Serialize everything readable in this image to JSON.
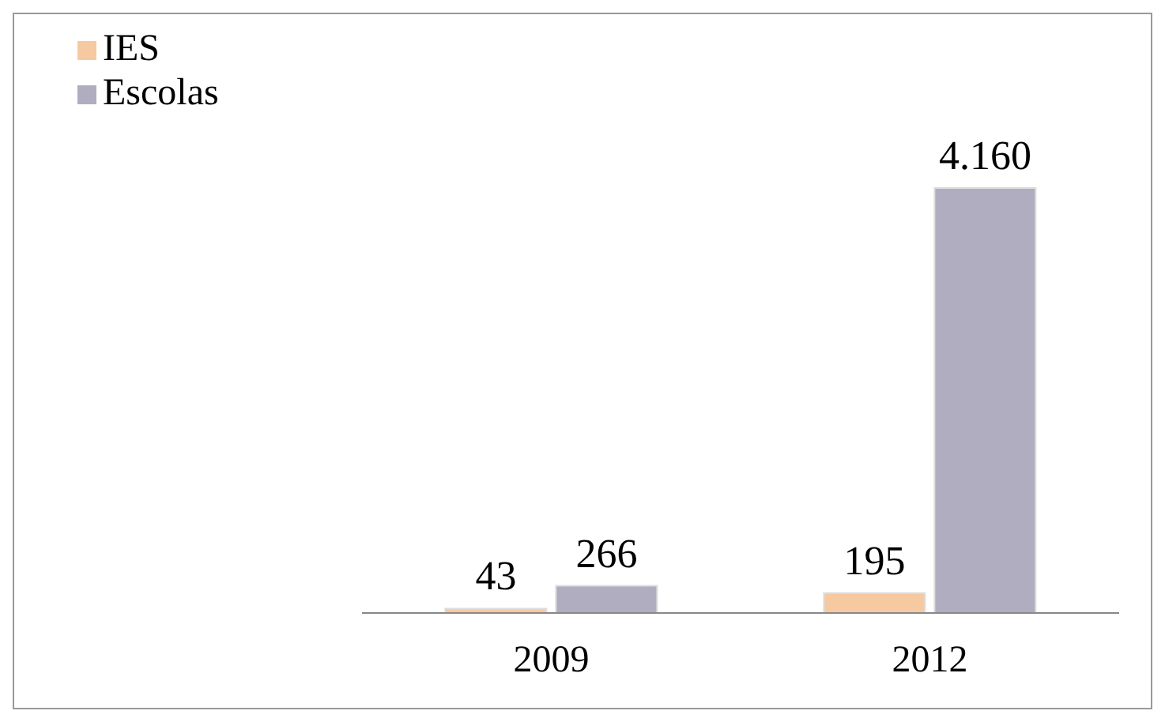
{
  "chart_data": {
    "type": "bar",
    "categories": [
      "2009",
      "2012"
    ],
    "series": [
      {
        "name": "IES",
        "color": "#f6c9a0",
        "values": [
          43,
          195
        ],
        "value_labels": [
          "43",
          "195"
        ]
      },
      {
        "name": "Escolas",
        "color": "#b1adc0",
        "values": [
          266,
          4160
        ],
        "value_labels": [
          "266",
          "4.160"
        ]
      }
    ],
    "legend": "top left",
    "grid": false
  }
}
